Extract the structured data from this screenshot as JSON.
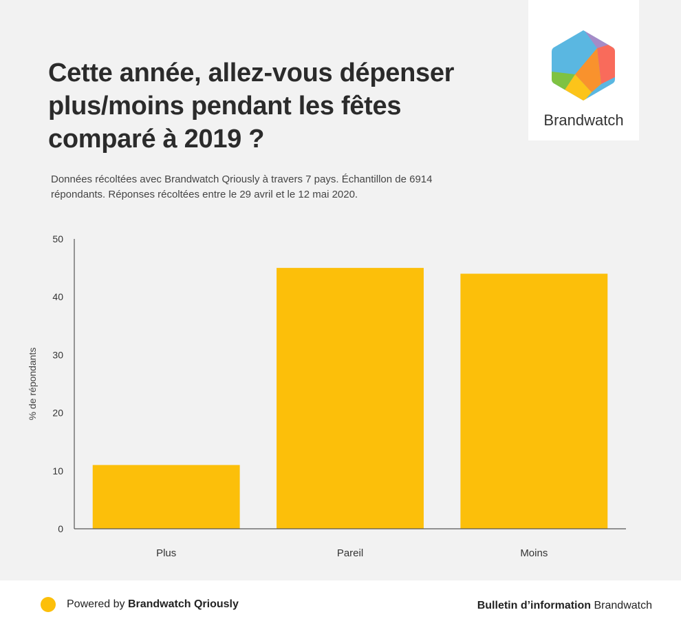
{
  "header": {
    "title": "Cette année, allez-vous dépenser plus/moins pendant les fêtes comparé à 2019 ?",
    "subtitle": "Données récoltées avec Brandwatch Qriously à travers 7 pays. Échantillon de 6914 répondants. Réponses récoltées entre le 29 avril et le 12 mai 2020."
  },
  "logo": {
    "name": "Brandwatch",
    "icon": "hexagon-logo-icon"
  },
  "colors": {
    "bar": "#fcbf0a",
    "axis": "#555555",
    "text": "#333333"
  },
  "chart_data": {
    "type": "bar",
    "categories": [
      "Plus",
      "Pareil",
      "Moins"
    ],
    "values": [
      11,
      45,
      44
    ],
    "ylabel": "% de répondants",
    "xlabel": "",
    "ylim": [
      0,
      50
    ],
    "yticks": [
      0,
      10,
      20,
      30,
      40,
      50
    ],
    "grid": false,
    "legend": "none"
  },
  "footer": {
    "powered_prefix": "Powered by",
    "powered_brand": "Brandwatch Qriously",
    "bulletin_label": "Bulletin d’information",
    "bulletin_brand": "Brandwatch"
  }
}
